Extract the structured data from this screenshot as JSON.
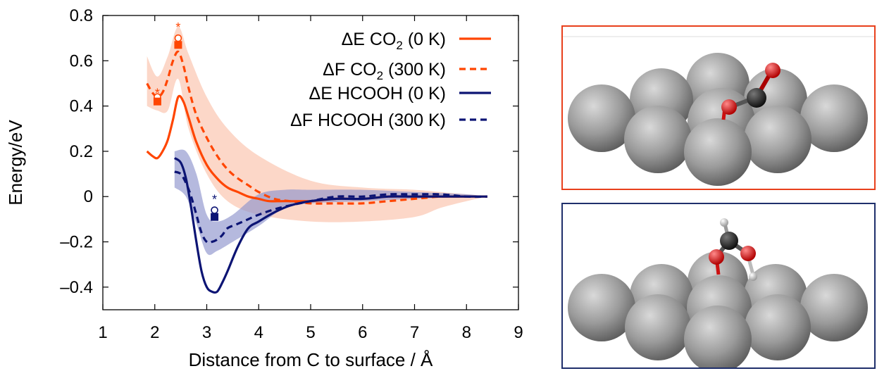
{
  "colors": {
    "orange": "#ff4500",
    "orange_band": "#fbc9b6",
    "navy": "#0c1474",
    "navy_band": "#8e93cc",
    "co2_frame": "#e8401c",
    "hcooh_frame": "#1f2f6b"
  },
  "chart_data": {
    "type": "line",
    "xlabel": "Distance from C to surface / Å",
    "ylabel": "Energy/eV",
    "xlim": [
      1,
      9
    ],
    "ylim": [
      -0.5,
      0.8
    ],
    "xticks": [
      "1",
      "2",
      "3",
      "4",
      "5",
      "6",
      "7",
      "8",
      "9"
    ],
    "yticks": [
      "0.8",
      "0.6",
      "0.4",
      "0.2",
      "0",
      "–0.2",
      "–0.4"
    ],
    "ytick_values": [
      0.8,
      0.6,
      0.4,
      0.2,
      0,
      -0.2,
      -0.4
    ],
    "grid": false,
    "legend_position": "top-right",
    "series": [
      {
        "name": "ΔE CO2 (0 K)",
        "label_main": "ΔE CO",
        "label_sub": "2",
        "label_tail": " (0 K)",
        "color": "orange",
        "dash": "solid",
        "x": [
          1.85,
          1.95,
          2.05,
          2.15,
          2.25,
          2.35,
          2.45,
          2.55,
          2.65,
          2.8,
          3.0,
          3.2,
          3.4,
          3.6,
          3.8,
          4.0,
          4.2,
          4.5,
          5.0,
          5.5,
          6.0,
          6.5,
          7.0,
          7.5,
          8.0,
          8.4
        ],
        "y": [
          0.2,
          0.18,
          0.17,
          0.2,
          0.25,
          0.34,
          0.44,
          0.42,
          0.35,
          0.24,
          0.14,
          0.08,
          0.04,
          0.02,
          0.0,
          -0.01,
          -0.02,
          -0.02,
          -0.02,
          -0.01,
          -0.01,
          0.0,
          0.0,
          0.0,
          0.0,
          0.0
        ]
      },
      {
        "name": "ΔF CO2 (300 K)",
        "label_main": "ΔF CO",
        "label_sub": "2",
        "label_tail": " (300 K)",
        "color": "orange",
        "dash": "dashed",
        "x": [
          1.85,
          1.95,
          2.05,
          2.15,
          2.25,
          2.35,
          2.45,
          2.55,
          2.65,
          2.8,
          3.0,
          3.2,
          3.4,
          3.6,
          3.8,
          4.0,
          4.3,
          4.6,
          5.0,
          5.5,
          6.0,
          6.5,
          7.0,
          7.5,
          8.0,
          8.4
        ],
        "y": [
          0.5,
          0.46,
          0.44,
          0.46,
          0.52,
          0.6,
          0.64,
          0.58,
          0.48,
          0.36,
          0.26,
          0.18,
          0.12,
          0.08,
          0.05,
          0.02,
          -0.01,
          -0.02,
          -0.03,
          -0.03,
          -0.03,
          -0.02,
          -0.01,
          0.0,
          0.0,
          0.0
        ],
        "band_x": [
          1.85,
          2.05,
          2.25,
          2.45,
          2.65,
          3.0,
          3.4,
          4.0,
          5.0,
          6.0,
          7.0,
          7.5,
          8.0,
          8.4
        ],
        "band_upper": [
          0.62,
          0.53,
          0.62,
          0.75,
          0.63,
          0.44,
          0.3,
          0.18,
          0.07,
          0.04,
          0.03,
          0.02,
          0.01,
          0.0
        ],
        "band_lower": [
          0.4,
          0.38,
          0.38,
          0.52,
          0.3,
          0.1,
          -0.02,
          -0.08,
          -0.11,
          -0.11,
          -0.09,
          -0.05,
          -0.02,
          0.0
        ]
      },
      {
        "name": "ΔE HCOOH (0 K)",
        "label_main": "ΔE HCOOH",
        "label_sub": "",
        "label_tail": " (0 K)",
        "color": "navy",
        "dash": "solid",
        "x": [
          2.38,
          2.5,
          2.6,
          2.7,
          2.8,
          2.9,
          3.0,
          3.1,
          3.2,
          3.3,
          3.4,
          3.6,
          3.8,
          4.0,
          4.3,
          4.6,
          5.0,
          5.5,
          6.0,
          6.5,
          7.0,
          7.5,
          8.0,
          8.4
        ],
        "y": [
          0.17,
          0.15,
          0.08,
          -0.05,
          -0.2,
          -0.33,
          -0.4,
          -0.42,
          -0.42,
          -0.38,
          -0.33,
          -0.22,
          -0.14,
          -0.11,
          -0.07,
          -0.04,
          -0.02,
          -0.01,
          -0.01,
          0.0,
          0.0,
          0.0,
          0.0,
          0.0
        ]
      },
      {
        "name": "ΔF HCOOH (300 K)",
        "label_main": "ΔF HCOOH",
        "label_sub": "",
        "label_tail": " (300 K)",
        "color": "navy",
        "dash": "dashed",
        "x": [
          2.38,
          2.5,
          2.6,
          2.7,
          2.8,
          2.9,
          3.0,
          3.1,
          3.2,
          3.3,
          3.4,
          3.6,
          3.8,
          4.0,
          4.4,
          5.0,
          5.5,
          6.0,
          6.5,
          7.0,
          7.5,
          8.0,
          8.4
        ],
        "y": [
          0.11,
          0.1,
          0.06,
          0.0,
          -0.08,
          -0.16,
          -0.2,
          -0.2,
          -0.19,
          -0.17,
          -0.14,
          -0.12,
          -0.1,
          -0.08,
          -0.05,
          -0.02,
          0.0,
          0.0,
          0.01,
          0.01,
          0.01,
          0.0,
          0.0
        ],
        "band_x": [
          2.38,
          2.6,
          2.8,
          3.0,
          3.2,
          3.5,
          4.0,
          4.5,
          5.0,
          6.0,
          7.0,
          8.0,
          8.4
        ],
        "band_upper": [
          0.2,
          0.2,
          0.1,
          -0.08,
          -0.11,
          -0.08,
          0.01,
          0.03,
          0.03,
          0.03,
          0.02,
          0.01,
          0.0
        ],
        "band_lower": [
          0.04,
          0.0,
          -0.12,
          -0.25,
          -0.24,
          -0.2,
          -0.13,
          -0.05,
          -0.03,
          -0.02,
          -0.01,
          0.0,
          0.0
        ]
      }
    ],
    "markers": [
      {
        "series": "co2",
        "color": "orange",
        "symbol": "star",
        "x": 2.05,
        "y": 0.46
      },
      {
        "series": "co2",
        "color": "orange",
        "symbol": "circle",
        "x": 2.05,
        "y": 0.44
      },
      {
        "series": "co2",
        "color": "orange",
        "symbol": "square",
        "x": 2.05,
        "y": 0.42
      },
      {
        "series": "co2",
        "color": "orange",
        "symbol": "star",
        "x": 2.45,
        "y": 0.75
      },
      {
        "series": "co2",
        "color": "orange",
        "symbol": "circle",
        "x": 2.45,
        "y": 0.7
      },
      {
        "series": "co2",
        "color": "orange",
        "symbol": "square",
        "x": 2.45,
        "y": 0.67
      },
      {
        "series": "hcooh",
        "color": "navy",
        "symbol": "star",
        "x": 3.15,
        "y": -0.01
      },
      {
        "series": "hcooh",
        "color": "navy",
        "symbol": "circle",
        "x": 3.15,
        "y": -0.06
      },
      {
        "series": "hcooh",
        "color": "navy",
        "symbol": "square",
        "x": 3.15,
        "y": -0.09
      }
    ]
  },
  "images": [
    {
      "name": "co2-adsorption-snapshot",
      "frame_color": "co2_frame",
      "molecule": "CO2"
    },
    {
      "name": "hcooh-adsorption-snapshot",
      "frame_color": "hcooh_frame",
      "molecule": "HCOOH"
    }
  ]
}
